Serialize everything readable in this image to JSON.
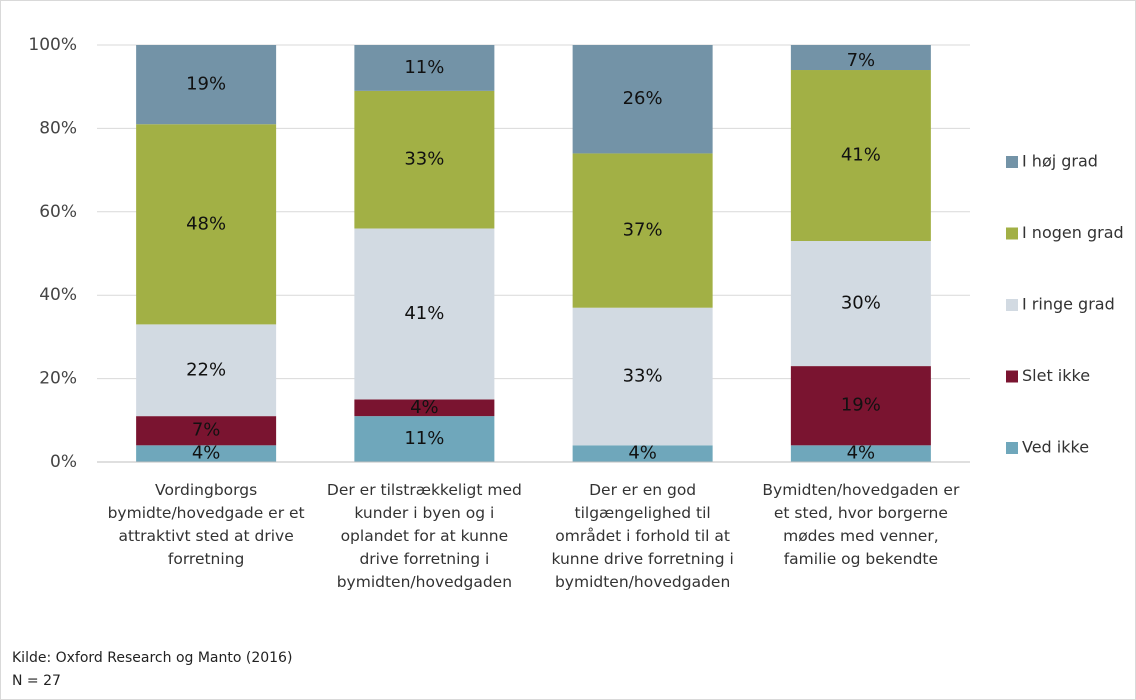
{
  "chart_data": {
    "type": "stacked_bar",
    "categories": [
      "Vordingborgs bymidte/hovedgade er et attraktivt sted at drive forretning",
      "Der er tilstrækkeligt med kunder i byen og i oplandet for at kunne drive forretning i bymidten/hovedgaden",
      "Der er en god tilgængelighed til området i forhold til at kunne drive forretning i bymidten/hovedgaden",
      "Bymidten/hovedgaden er et sted, hvor borgerne mødes med venner, familie og bekendte"
    ],
    "series": [
      {
        "name": "Ved ikke",
        "color": "#6fa7bb",
        "values": [
          4,
          11,
          4,
          4
        ],
        "value_labels": [
          "4%",
          "11%",
          "4%",
          "4%"
        ]
      },
      {
        "name": "Slet ikke",
        "color": "#7a1430",
        "values": [
          7,
          4,
          0,
          19
        ],
        "value_labels": [
          "7%",
          "4%",
          null,
          "19%"
        ]
      },
      {
        "name": "I ringe grad",
        "color": "#d2dae2",
        "values": [
          22,
          41,
          33,
          30
        ],
        "value_labels": [
          "22%",
          "41%",
          "33%",
          "30%"
        ]
      },
      {
        "name": "I nogen grad",
        "color": "#a2b045",
        "values": [
          48,
          33,
          37,
          41
        ],
        "value_labels": [
          "48%",
          "33%",
          "37%",
          "41%"
        ]
      },
      {
        "name": "I høj grad",
        "color": "#7393a7",
        "values": [
          19,
          11,
          26,
          7
        ],
        "value_labels": [
          "19%",
          "11%",
          "26%",
          "7%"
        ]
      }
    ],
    "ylim": [
      0,
      100
    ],
    "yticks": [
      {
        "value": 0,
        "label": "0%"
      },
      {
        "value": 20,
        "label": "20%"
      },
      {
        "value": 40,
        "label": "40%"
      },
      {
        "value": 60,
        "label": "60%"
      },
      {
        "value": 80,
        "label": "80%"
      },
      {
        "value": 100,
        "label": "100%"
      }
    ],
    "grid": true,
    "legend": "right",
    "source": "Kilde: Oxford Research og Manto (2016)",
    "note": "N = 27"
  }
}
